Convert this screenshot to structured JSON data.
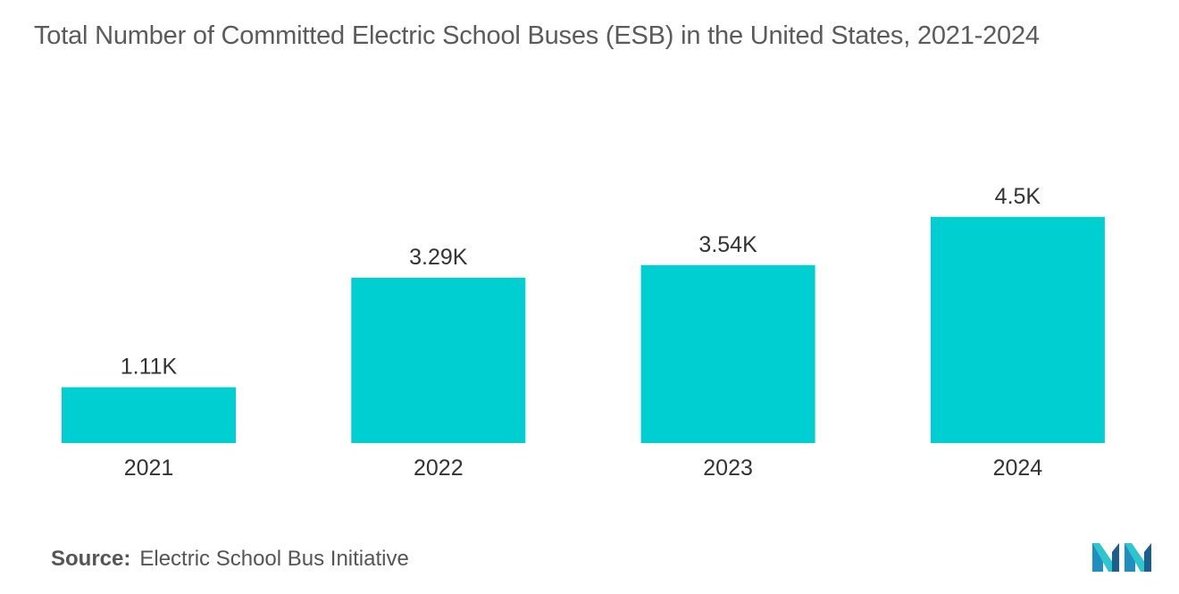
{
  "title": "Total Number of Committed Electric School Buses (ESB) in the United States, 2021-2024",
  "source": {
    "key": "Source:",
    "value": "Electric School Bus Initiative"
  },
  "logo": {
    "icon": "mordor-intelligence-logo-icon",
    "colors": [
      "#1f8fc2",
      "#2fc5cc",
      "#1a5f8f"
    ]
  },
  "colors": {
    "bar": "#00cfd2",
    "text": "#333333",
    "title": "#5b5b5b"
  },
  "chart_data": {
    "type": "bar",
    "categories": [
      "2021",
      "2022",
      "2023",
      "2024"
    ],
    "values": [
      1110,
      3290,
      3540,
      4500
    ],
    "data_labels": [
      "1.11K",
      "3.29K",
      "3.54K",
      "4.5K"
    ],
    "title": "Total Number of Committed Electric School Buses (ESB) in the United States, 2021-2024",
    "xlabel": "",
    "ylabel": "",
    "ylim": [
      0,
      5000
    ],
    "grid": false,
    "legend": "none",
    "y_axis_visible": false
  }
}
